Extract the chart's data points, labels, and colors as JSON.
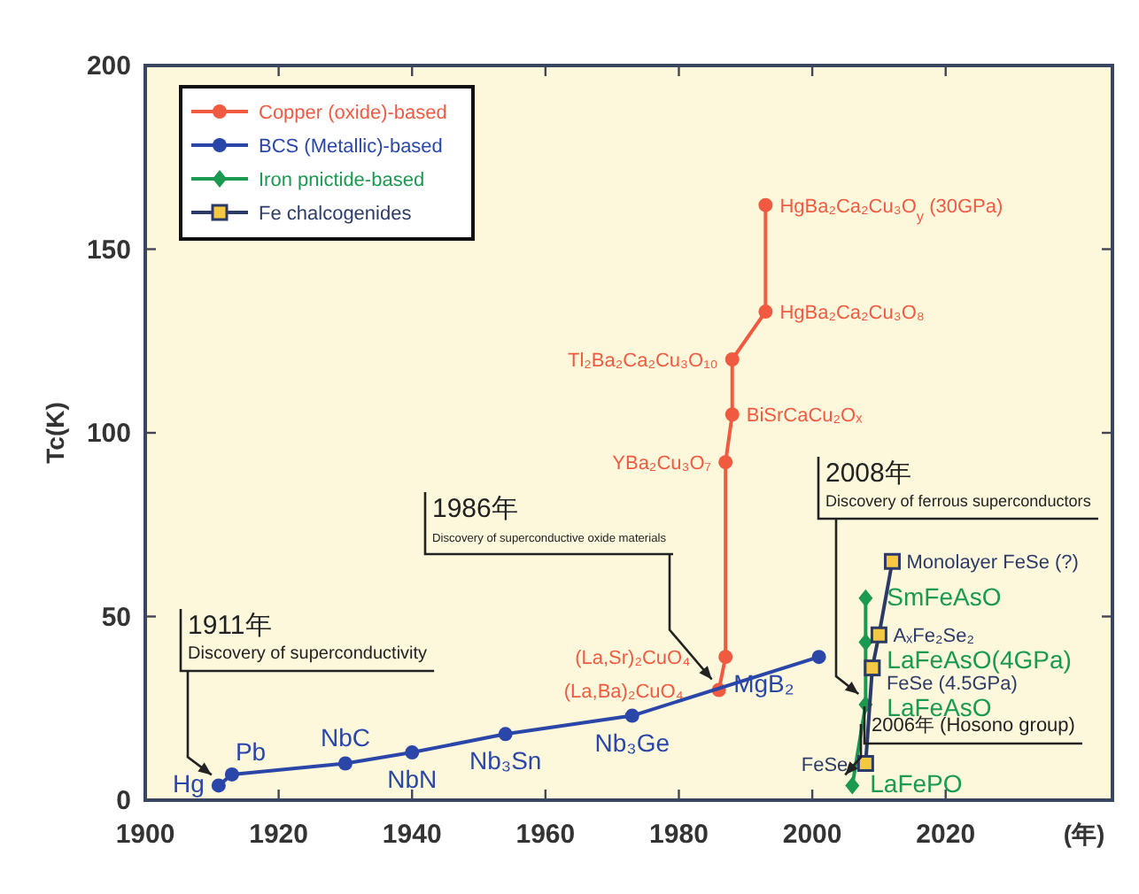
{
  "chart_data": {
    "type": "line",
    "xlabel": "(年)",
    "ylabel": "Tc(K)",
    "xlim": [
      1900,
      2045
    ],
    "ylim": [
      0,
      200
    ],
    "xticks": [
      1900,
      1920,
      1940,
      1960,
      1980,
      2000,
      2020
    ],
    "yticks": [
      0,
      50,
      100,
      150,
      200
    ],
    "grid": false,
    "legend": "top left",
    "series": [
      {
        "name": "Copper (oxide)-based",
        "color": "#f05a40",
        "marker": "circle",
        "x": [
          1986,
          1987,
          1987,
          1988,
          1988,
          1993,
          1993
        ],
        "values": [
          30,
          39,
          92,
          105,
          120,
          133,
          162
        ],
        "value_labels": [
          "(La,Ba)₂CuO₄",
          "(La,Sr)₂CuO₄",
          "YBa₂Cu₃O₇",
          "BiSrCaCu₂Oₓ",
          "Tl₂Ba₂Ca₂Cu₃O₁₀",
          "HgBa₂Ca₂Cu₃O₈",
          null
        ]
      },
      {
        "name": "BCS (Metallic)-based",
        "color": "#2a46a8",
        "marker": "circle",
        "x": [
          1911,
          1913,
          1930,
          1940,
          1954,
          1973,
          2001
        ],
        "values": [
          4,
          7,
          10,
          13,
          18,
          23,
          39
        ],
        "value_labels": [
          "Hg",
          "Pb",
          "NbC",
          "NbN",
          "Nb₃Sn",
          "Nb₃Ge",
          "MgB₂"
        ]
      },
      {
        "name": "Iron pnictide-based",
        "color": "#1a9a50",
        "marker": "diamond",
        "x": [
          2006,
          2008,
          2008,
          2008
        ],
        "values": [
          4,
          26,
          43,
          55
        ],
        "value_labels": [
          "LaFePO",
          "LaFeAsO",
          "LaFeAsO(4GPa)",
          "SmFeAsO"
        ]
      },
      {
        "name": "Fe chalcogenides",
        "color": "#2b3a67",
        "marker": "square",
        "x": [
          2008,
          2009,
          2010,
          2012
        ],
        "values": [
          10,
          36,
          45,
          65
        ],
        "value_labels": [
          "FeSe",
          null,
          "AₓFe₂Se₂",
          "Monolayer FeSe (?)"
        ]
      }
    ],
    "annotations": [
      {
        "text": "1911年\nDiscovery of superconductivity",
        "x": 1911,
        "y": 4
      },
      {
        "text": "1986年\nDiscovery of superconductive oxide materials",
        "x": 1986,
        "y": 30
      },
      {
        "text": "2008年\nDiscovery of ferrous superconductors",
        "x": 2008,
        "y": 26
      },
      {
        "text": "2006年 (Hosono group)",
        "x": 2006,
        "y": 4
      },
      {
        "text": "HgBa₂Ca₂Cu₃O$_{y}$ (30GPa)",
        "x": 1993,
        "y": 162
      },
      {
        "text": "FeSe (4.5GPa)",
        "x": 2009,
        "y": 36
      }
    ]
  }
}
